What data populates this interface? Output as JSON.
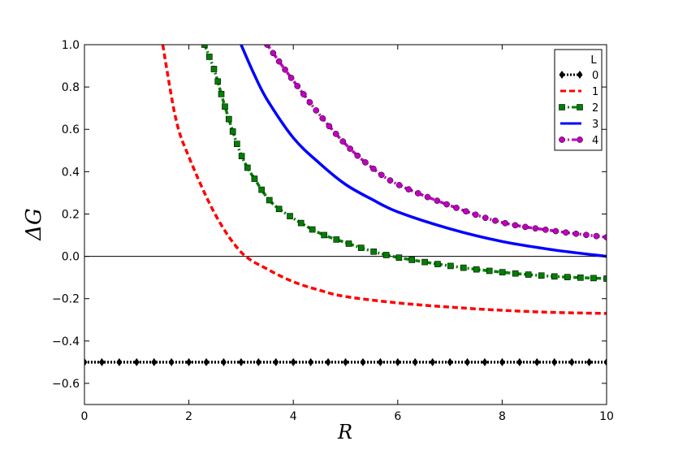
{
  "chart_data": {
    "type": "line",
    "xlabel": "R",
    "ylabel": "ΔG",
    "xlim": [
      0,
      10
    ],
    "ylim": [
      -0.7,
      1.0
    ],
    "x_ticks": [
      0,
      2,
      4,
      6,
      8,
      10
    ],
    "y_ticks": [
      -0.6,
      -0.4,
      -0.2,
      0.0,
      0.2,
      0.4,
      0.6,
      0.8,
      1.0
    ],
    "x_tick_labels": [
      "0",
      "2",
      "4",
      "6",
      "8",
      "10"
    ],
    "y_tick_labels": [
      "−0.6",
      "−0.4",
      "−0.2",
      "0.0",
      "0.2",
      "0.4",
      "0.6",
      "0.8",
      "1.0"
    ],
    "reference_line": {
      "y": 0.0,
      "color": "#000000"
    },
    "legend": {
      "title": "L",
      "placement": "top-right"
    },
    "series": [
      {
        "name": "0",
        "color": "#000000",
        "style": "dotted",
        "marker": "diamond",
        "x": [
          0.0,
          0.5,
          1.0,
          2.0,
          3.0,
          4.0,
          5.0,
          6.0,
          7.0,
          8.0,
          9.0,
          10.0
        ],
        "y": [
          -0.5,
          -0.5,
          -0.5,
          -0.5,
          -0.5,
          -0.5,
          -0.5,
          -0.5,
          -0.5,
          -0.5,
          -0.5,
          -0.5
        ]
      },
      {
        "name": "1",
        "color": "#ff0000",
        "style": "dashed",
        "marker": "none",
        "x": [
          1.5,
          1.75,
          2.0,
          2.5,
          3.0,
          3.5,
          4.0,
          4.5,
          5.0,
          6.0,
          7.0,
          8.0,
          9.0,
          10.0
        ],
        "y": [
          1.0,
          0.65,
          0.47,
          0.2,
          0.02,
          -0.06,
          -0.12,
          -0.16,
          -0.19,
          -0.22,
          -0.24,
          -0.255,
          -0.265,
          -0.27
        ]
      },
      {
        "name": "2",
        "color": "#007f00",
        "style": "dashdot",
        "marker": "square",
        "x": [
          2.3,
          2.5,
          2.7,
          3.0,
          3.3,
          3.6,
          4.0,
          4.5,
          5.0,
          5.5,
          6.0,
          7.0,
          8.0,
          9.0,
          10.0
        ],
        "y": [
          1.0,
          0.87,
          0.7,
          0.48,
          0.35,
          0.25,
          0.18,
          0.11,
          0.065,
          0.025,
          -0.005,
          -0.045,
          -0.075,
          -0.095,
          -0.105
        ]
      },
      {
        "name": "3",
        "color": "#0000ff",
        "style": "solid",
        "marker": "none",
        "x": [
          3.0,
          3.25,
          3.5,
          4.0,
          4.5,
          5.0,
          5.5,
          6.0,
          7.0,
          8.0,
          9.0,
          10.0
        ],
        "y": [
          1.0,
          0.86,
          0.74,
          0.56,
          0.44,
          0.34,
          0.27,
          0.21,
          0.13,
          0.07,
          0.03,
          0.0
        ]
      },
      {
        "name": "4",
        "color": "#bf00bf",
        "style": "dashdot",
        "marker": "circle",
        "x": [
          3.5,
          3.7,
          4.0,
          4.5,
          5.0,
          5.5,
          6.0,
          7.0,
          8.0,
          9.0,
          10.0
        ],
        "y": [
          1.0,
          0.93,
          0.83,
          0.67,
          0.53,
          0.42,
          0.34,
          0.24,
          0.16,
          0.12,
          0.09
        ]
      }
    ]
  }
}
